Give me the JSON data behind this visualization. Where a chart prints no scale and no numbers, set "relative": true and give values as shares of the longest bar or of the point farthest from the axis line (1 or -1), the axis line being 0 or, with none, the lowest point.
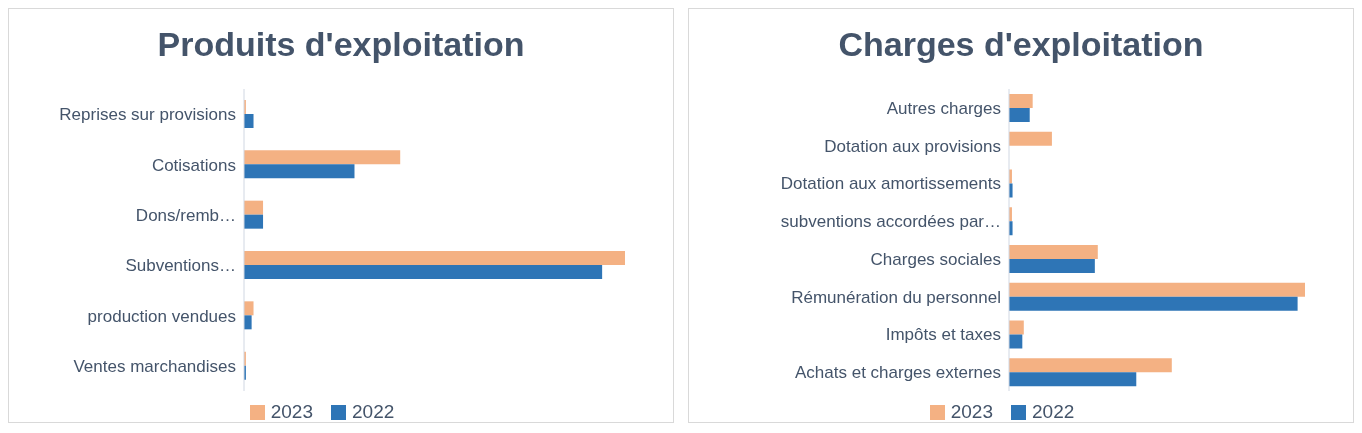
{
  "chart_data": [
    {
      "type": "bar",
      "orientation": "horizontal",
      "relative": true,
      "title": "Produits d'exploitation",
      "categories": [
        "Reprises sur provisions",
        "Cotisations",
        "Dons/remb…",
        "Subventions…",
        "production vendues",
        "Ventes marchandises"
      ],
      "series": [
        {
          "name": "2023",
          "color": "#f4b183",
          "values": [
            0.005,
            0.41,
            0.05,
            1,
            0.025,
            0.005
          ]
        },
        {
          "name": "2022",
          "color": "#2e75b6",
          "values": [
            0.025,
            0.29,
            0.05,
            0.94,
            0.02,
            0.005
          ]
        }
      ],
      "legend": "bottom"
    },
    {
      "type": "bar",
      "orientation": "horizontal",
      "relative": true,
      "title": "Charges d'exploitation",
      "categories": [
        "Autres charges",
        "Dotation aux provisions",
        "Dotation aux amortissements",
        "subventions accordées par…",
        "Charges sociales",
        "Rémunération du personnel",
        "Impôts et taxes",
        "Achats et charges externes"
      ],
      "series": [
        {
          "name": "2023",
          "color": "#f4b183",
          "values": [
            0.08,
            0.145,
            0.01,
            0.01,
            0.3,
            1,
            0.05,
            0.55
          ]
        },
        {
          "name": "2022",
          "color": "#2e75b6",
          "values": [
            0.07,
            null,
            0.012,
            0.012,
            0.29,
            0.975,
            0.045,
            0.43
          ]
        }
      ],
      "legend": "bottom"
    }
  ]
}
